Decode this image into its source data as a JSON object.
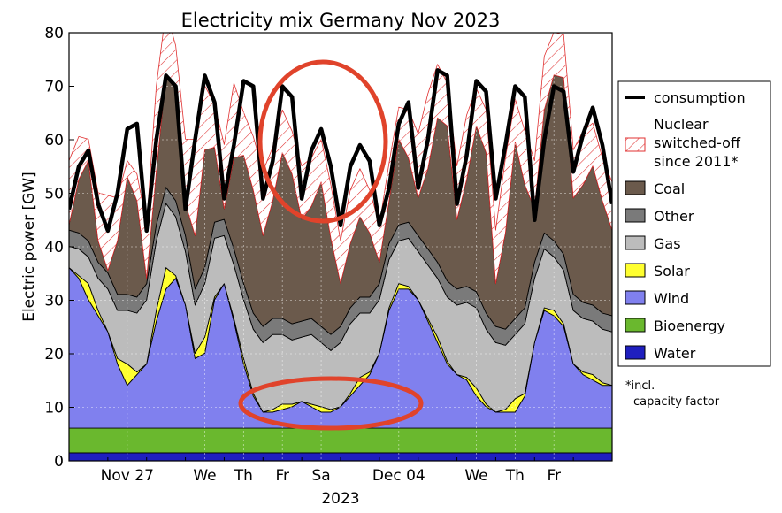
{
  "chart_data": {
    "type": "area",
    "title": "Electricity mix Germany Nov 2023",
    "ylabel": "Electric power [GW]",
    "xlabel": "2023",
    "ylim": [
      0,
      80
    ],
    "xlim": [
      0,
      14
    ],
    "yticks": [
      0,
      10,
      20,
      30,
      40,
      50,
      60,
      70,
      80
    ],
    "xticks": [
      {
        "x": 1.5,
        "label": "Nov 27"
      },
      {
        "x": 3.5,
        "label": "We"
      },
      {
        "x": 4.5,
        "label": "Th"
      },
      {
        "x": 5.5,
        "label": "Fr"
      },
      {
        "x": 6.5,
        "label": "Sa"
      },
      {
        "x": 8.5,
        "label": "Dec 04"
      },
      {
        "x": 10.5,
        "label": "We"
      },
      {
        "x": 11.5,
        "label": "Th"
      },
      {
        "x": 12.5,
        "label": "Fr"
      }
    ],
    "grid": true,
    "legend_position": "right",
    "colors": {
      "water": "#1f1fbf",
      "bioenergy": "#6ab82e",
      "wind": "#8080ee",
      "solar": "#ffff30",
      "gas": "#bcbcbc",
      "other": "#7a7a7a",
      "coal": "#6b5a4c",
      "nuclear": "#e03030",
      "consumption": "#000000",
      "highlight": "#e0432b"
    },
    "x": [
      0.0,
      0.25,
      0.5,
      0.75,
      1.0,
      1.25,
      1.5,
      1.75,
      2.0,
      2.25,
      2.5,
      2.75,
      3.0,
      3.25,
      3.5,
      3.75,
      4.0,
      4.25,
      4.5,
      4.75,
      5.0,
      5.25,
      5.5,
      5.75,
      6.0,
      6.25,
      6.5,
      6.75,
      7.0,
      7.25,
      7.5,
      7.75,
      8.0,
      8.25,
      8.5,
      8.75,
      9.0,
      9.25,
      9.5,
      9.75,
      10.0,
      10.25,
      10.5,
      10.75,
      11.0,
      11.25,
      11.5,
      11.75,
      12.0,
      12.25,
      12.5,
      12.75,
      13.0,
      13.25,
      13.5,
      13.75,
      14.0
    ],
    "series": [
      {
        "name": "Water",
        "values": [
          1.5,
          1.5,
          1.5,
          1.5,
          1.5,
          1.5,
          1.5,
          1.5,
          1.5,
          1.5,
          1.5,
          1.5,
          1.5,
          1.5,
          1.5,
          1.5,
          1.5,
          1.5,
          1.5,
          1.5,
          1.5,
          1.5,
          1.5,
          1.5,
          1.5,
          1.5,
          1.5,
          1.5,
          1.5,
          1.5,
          1.5,
          1.5,
          1.5,
          1.5,
          1.5,
          1.5,
          1.5,
          1.5,
          1.5,
          1.5,
          1.5,
          1.5,
          1.5,
          1.5,
          1.5,
          1.5,
          1.5,
          1.5,
          1.5,
          1.5,
          1.5,
          1.5,
          1.5,
          1.5,
          1.5,
          1.5,
          1.5
        ]
      },
      {
        "name": "Bioenergy",
        "values": [
          4.6,
          4.6,
          4.6,
          4.6,
          4.6,
          4.6,
          4.6,
          4.6,
          4.6,
          4.6,
          4.6,
          4.6,
          4.6,
          4.6,
          4.6,
          4.6,
          4.6,
          4.6,
          4.6,
          4.6,
          4.6,
          4.6,
          4.6,
          4.6,
          4.6,
          4.6,
          4.6,
          4.6,
          4.6,
          4.6,
          4.6,
          4.6,
          4.6,
          4.6,
          4.6,
          4.6,
          4.6,
          4.6,
          4.6,
          4.6,
          4.6,
          4.6,
          4.6,
          4.6,
          4.6,
          4.6,
          4.6,
          4.6,
          4.6,
          4.6,
          4.6,
          4.6,
          4.6,
          4.6,
          4.6,
          4.6,
          4.6
        ]
      },
      {
        "name": "Wind",
        "values": [
          30,
          28,
          24,
          21,
          18,
          12,
          8,
          10,
          12,
          20,
          26,
          28,
          23,
          13,
          14,
          24,
          27,
          20,
          12,
          6,
          3,
          3,
          3.5,
          4,
          5,
          4,
          3,
          3,
          4,
          6,
          8,
          10,
          14,
          22,
          26,
          26,
          24,
          20,
          16,
          12,
          10,
          9,
          6,
          4,
          3,
          3,
          3,
          6,
          16,
          22,
          21,
          19,
          12,
          10,
          9,
          8,
          8
        ]
      },
      {
        "name": "Solar",
        "values": [
          0,
          0.5,
          3,
          1,
          0,
          1,
          4,
          0.5,
          0,
          2,
          4,
          0.5,
          0,
          1,
          3,
          0.5,
          0,
          0.5,
          1,
          0.5,
          0,
          0.5,
          1,
          0.5,
          0,
          0.5,
          1,
          0.5,
          0,
          0.5,
          1.5,
          0.5,
          0,
          0.5,
          1,
          0.5,
          0,
          0.5,
          1,
          0.5,
          0,
          0.5,
          1.5,
          0.5,
          0,
          0.5,
          2.5,
          0.5,
          0,
          0.5,
          1,
          0.5,
          0,
          0.5,
          1,
          0.5,
          0
        ]
      },
      {
        "name": "Gas",
        "values": [
          4,
          5,
          5,
          6,
          8,
          9,
          10,
          11,
          12,
          13,
          12,
          11,
          10,
          9,
          10,
          11,
          9,
          10,
          11,
          12,
          13,
          14,
          13,
          12,
          12,
          13,
          12,
          11,
          12,
          13,
          12,
          11,
          10,
          9,
          8,
          9,
          9,
          10,
          11,
          12,
          13,
          14,
          15,
          14,
          13,
          12,
          12,
          13,
          12,
          11,
          10,
          10,
          10,
          10,
          10,
          10,
          10
        ]
      },
      {
        "name": "Other",
        "values": [
          3,
          3,
          3,
          3,
          3,
          3,
          3,
          3,
          3,
          3,
          3,
          3,
          3,
          3,
          3,
          3,
          3,
          3,
          3,
          3,
          3,
          3,
          3,
          3,
          3,
          3,
          3,
          3,
          3,
          3,
          3,
          3,
          3,
          3,
          3,
          3,
          3,
          3,
          3,
          3,
          3,
          3,
          3,
          3,
          3,
          3,
          3,
          3,
          3,
          3,
          3,
          3,
          3,
          3,
          3,
          3,
          3
        ]
      },
      {
        "name": "Coal",
        "values": [
          1,
          10,
          15,
          4,
          0.5,
          10,
          22,
          18,
          1,
          10,
          21,
          21,
          6,
          10,
          22,
          14,
          2,
          17,
          24,
          23,
          17,
          22,
          31,
          28,
          19,
          21,
          27,
          18,
          8,
          12,
          15,
          12,
          4,
          8,
          16,
          12,
          7,
          15,
          27,
          29,
          13,
          20,
          31,
          30,
          8,
          18,
          33,
          23,
          10,
          23,
          31,
          33,
          18,
          22,
          26,
          21,
          16
        ]
      },
      {
        "name": "Nuclear switched-off since 2011*",
        "values": [
          12,
          8,
          4,
          9,
          14,
          8,
          3,
          5,
          10,
          16,
          12,
          8,
          12,
          18,
          12,
          8,
          12,
          14,
          8,
          10,
          12,
          10,
          8,
          8,
          10,
          9,
          8,
          10,
          8,
          10,
          9,
          8,
          7,
          7,
          6,
          9,
          12,
          14,
          10,
          8,
          10,
          12,
          7,
          8,
          10,
          14,
          8,
          10,
          9,
          10,
          8,
          8,
          9,
          10,
          8,
          8,
          9
        ]
      }
    ],
    "consumption": [
      47,
      55,
      58,
      48,
      43,
      50,
      62,
      63,
      43,
      60,
      72,
      70,
      47,
      60,
      72,
      67,
      49,
      59,
      71,
      70,
      49,
      56,
      70,
      68,
      49,
      58,
      62,
      55,
      44,
      55,
      59,
      56,
      44,
      51,
      63,
      67,
      51,
      60,
      73,
      72,
      48,
      57,
      71,
      69,
      49,
      59,
      70,
      68,
      45,
      60,
      70,
      69,
      54,
      61,
      66,
      59,
      48
    ],
    "legend": {
      "consumption": "consumption",
      "nuclear": "Nuclear switched-off since 2011*",
      "nuclear_lines": [
        "Nuclear",
        "switched-off",
        "since 2011*"
      ],
      "coal": "Coal",
      "other": "Other",
      "gas": "Gas",
      "solar": "Solar",
      "wind": "Wind",
      "bioenergy": "Bioenergy",
      "water": "Water"
    },
    "note_lines": [
      "*incl.",
      "capacity factor"
    ]
  }
}
